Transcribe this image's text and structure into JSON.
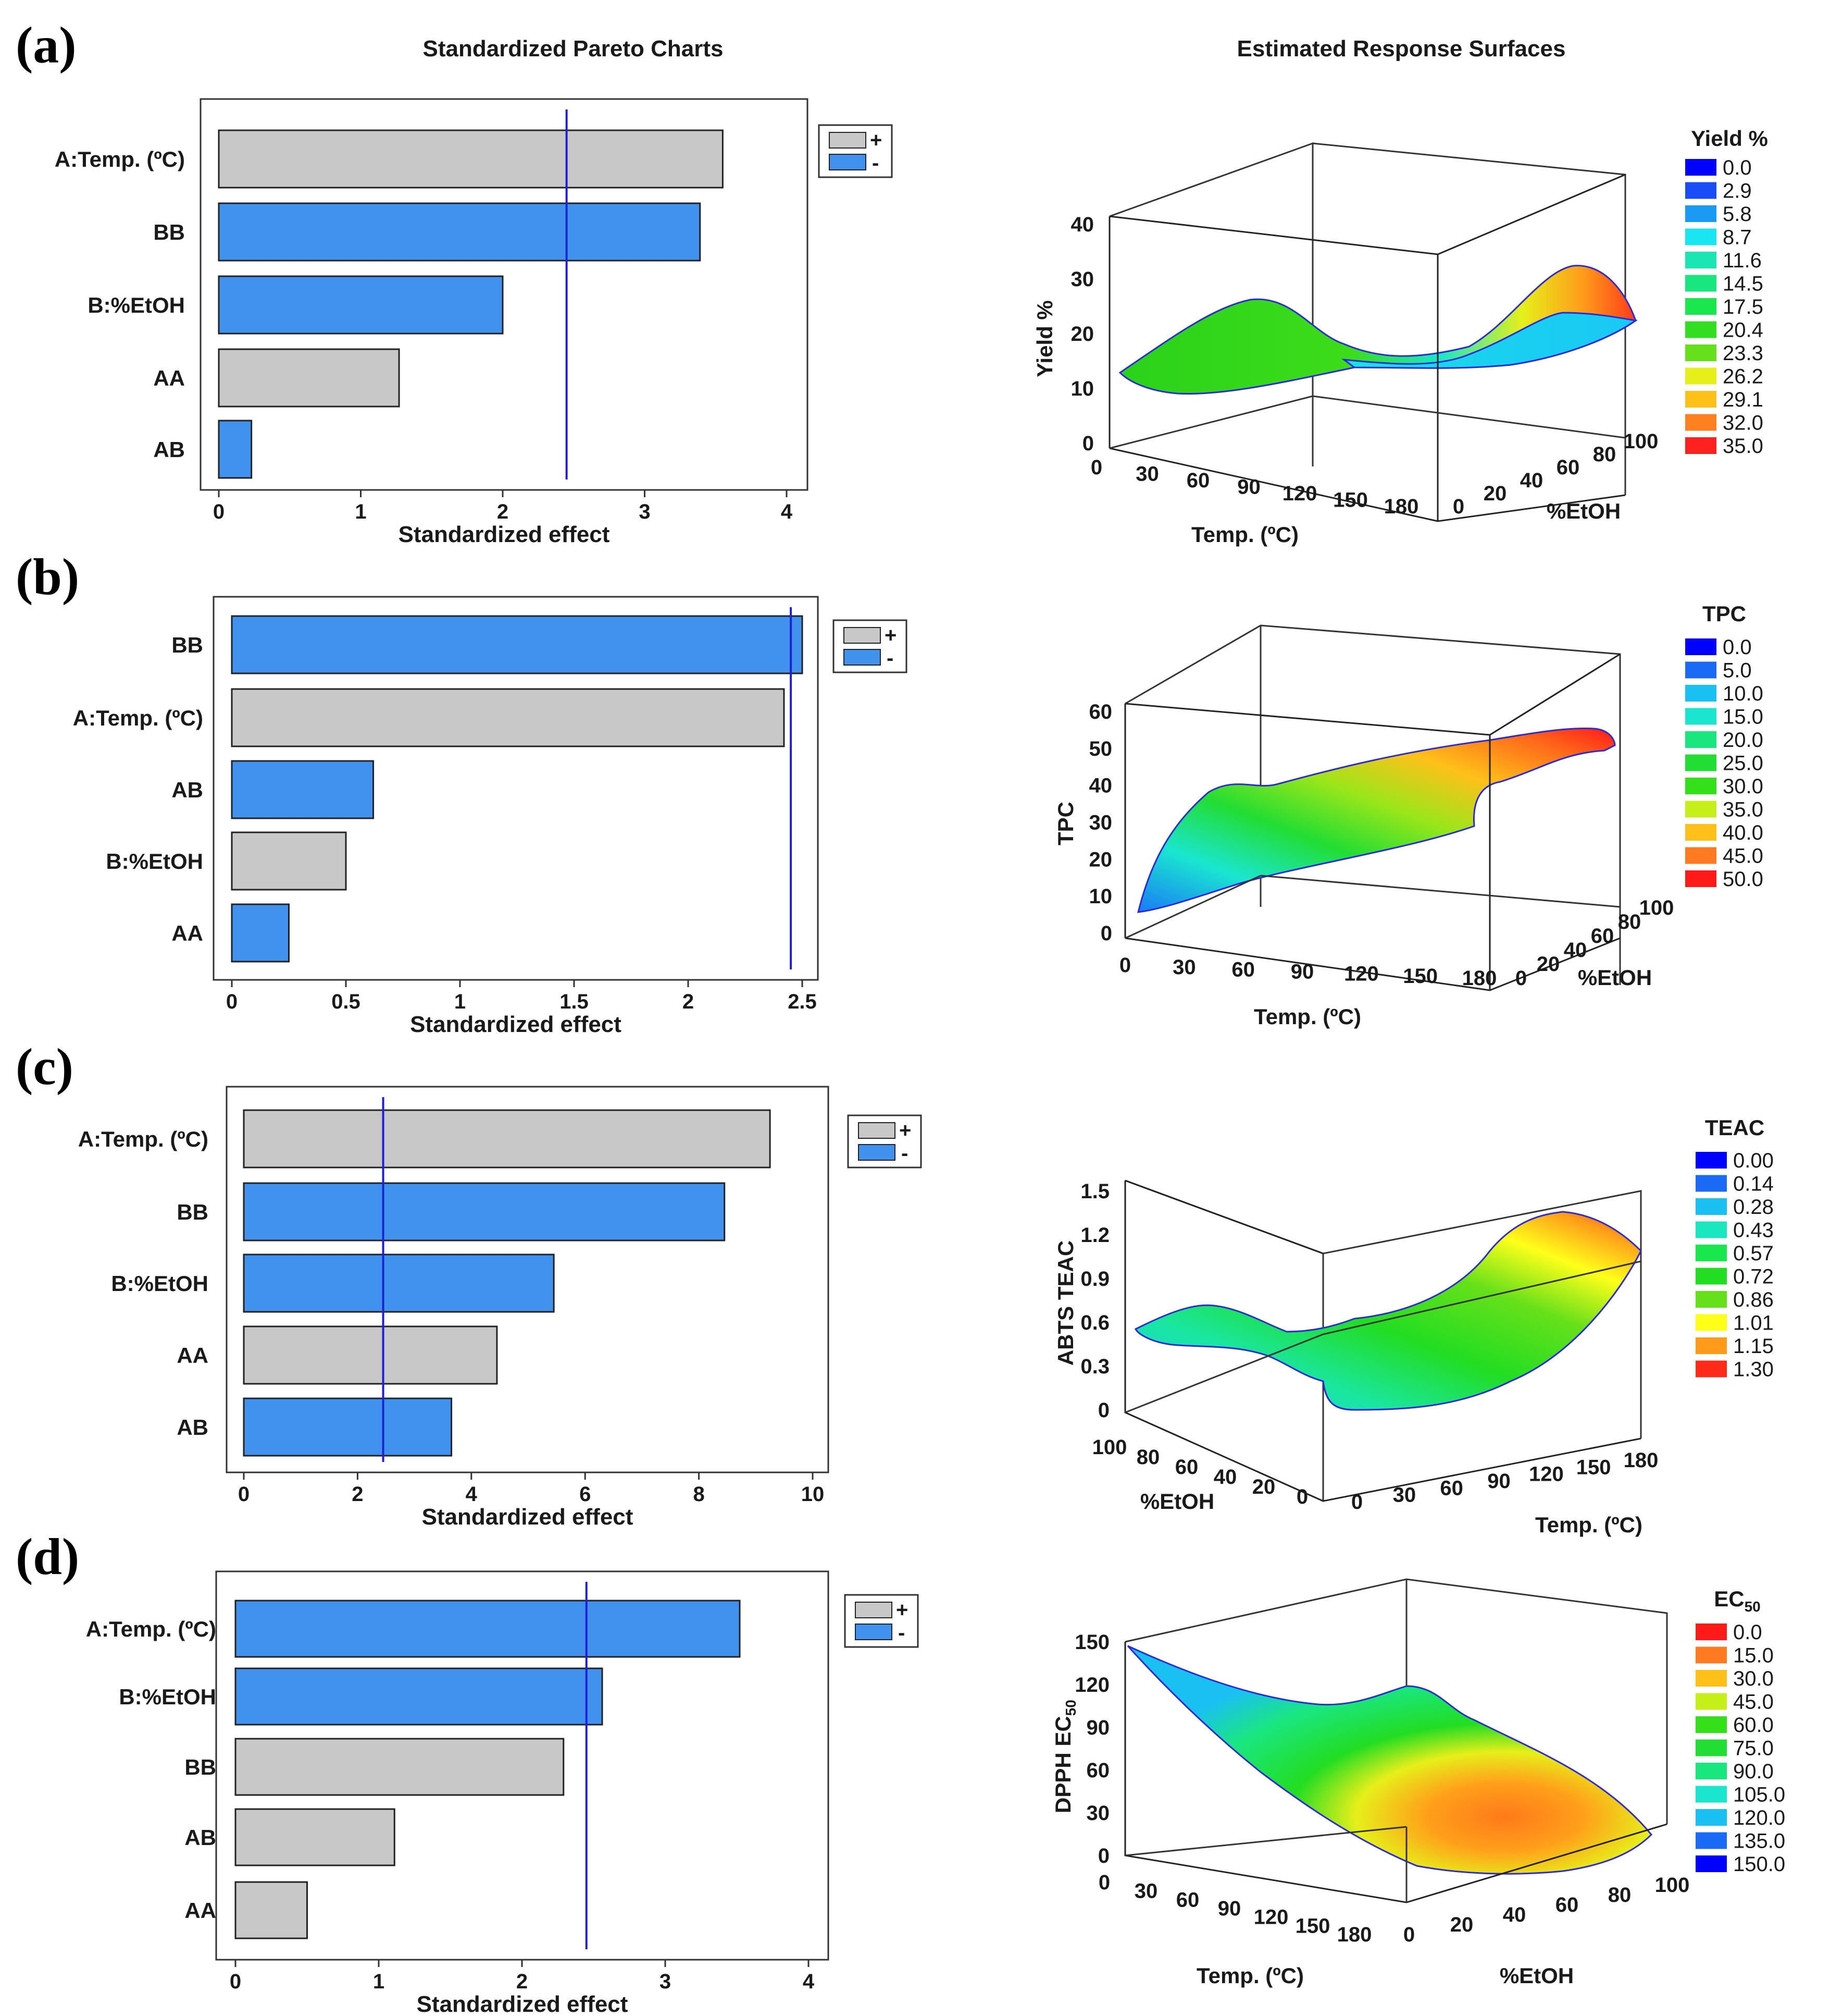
{
  "headers": {
    "left": "Standardized Pareto Charts",
    "right": "Estimated Response Surfaces"
  },
  "colors": {
    "bar_pos": "#c8c8c8",
    "bar_neg": "#4192ee",
    "ref_line": "#1f1fd8",
    "surface_green": "#22dd22"
  },
  "legend_symbols": {
    "plus": "+",
    "minus": "-"
  },
  "chart_data": [
    {
      "id": "a",
      "label": "(a)",
      "type": "bar",
      "orientation": "horizontal",
      "xlabel": "Standardized effect",
      "xlim": [
        0,
        4
      ],
      "xticks": [
        "0",
        "1",
        "2",
        "3",
        "4"
      ],
      "ref_line": 2.45,
      "categories": [
        "A:Temp. (ºC)",
        "BB",
        "B:%EtOH",
        "AA",
        "AB"
      ],
      "values": [
        3.55,
        3.39,
        2.0,
        1.27,
        0.23
      ],
      "signs": [
        "+",
        "-",
        "-",
        "+",
        "-"
      ],
      "surface": {
        "zlabel": "Yield %",
        "zticks": [
          "0",
          "10",
          "20",
          "30",
          "40"
        ],
        "xlabel": "Temp. (ºC)",
        "xticks": [
          "0",
          "30",
          "60",
          "90",
          "120",
          "150",
          "180"
        ],
        "ylabel": "%EtOH",
        "yticks": [
          "0",
          "20",
          "40",
          "60",
          "80",
          "100"
        ],
        "legend_title": "Yield %",
        "legend_values": [
          "0.0",
          "2.9",
          "5.8",
          "8.7",
          "11.6",
          "14.5",
          "17.5",
          "20.4",
          "23.3",
          "26.2",
          "29.1",
          "32.0",
          "35.0"
        ],
        "legend_colors": [
          "#0000ff",
          "#1a4df5",
          "#1a9af2",
          "#1ae6f2",
          "#1ae6b3",
          "#1ae680",
          "#1ae64d",
          "#33dd22",
          "#66e01a",
          "#e6ef1a",
          "#ffc01a",
          "#ff8020",
          "#ff2020"
        ]
      }
    },
    {
      "id": "b",
      "label": "(b)",
      "type": "bar",
      "orientation": "horizontal",
      "xlabel": "Standardized effect",
      "xlim": [
        0,
        2.5
      ],
      "xticks": [
        "0",
        "0.5",
        "1",
        "1.5",
        "2",
        "2.5"
      ],
      "ref_line": 2.45,
      "categories": [
        "BB",
        "A:Temp. (ºC)",
        "AB",
        "B:%EtOH",
        "AA"
      ],
      "values": [
        2.5,
        2.42,
        0.62,
        0.5,
        0.25
      ],
      "signs": [
        "-",
        "+",
        "-",
        "+",
        "-"
      ],
      "surface": {
        "zlabel": "TPC",
        "zticks": [
          "0",
          "10",
          "20",
          "30",
          "40",
          "50",
          "60"
        ],
        "xlabel": "Temp. (ºC)",
        "xticks": [
          "0",
          "30",
          "60",
          "90",
          "120",
          "150",
          "180"
        ],
        "ylabel": "%EtOH",
        "yticks": [
          "0",
          "20",
          "40",
          "60",
          "80",
          "100"
        ],
        "legend_title": "TPC",
        "legend_values": [
          "0.0",
          "5.0",
          "10.0",
          "15.0",
          "20.0",
          "25.0",
          "30.0",
          "35.0",
          "40.0",
          "45.0",
          "50.0"
        ],
        "legend_colors": [
          "#0000ff",
          "#1a6af5",
          "#1ac0f2",
          "#1ae6d0",
          "#1ae680",
          "#22dd33",
          "#33e01a",
          "#c6ef1a",
          "#ffc01a",
          "#ff7a20",
          "#ff1a1a"
        ]
      }
    },
    {
      "id": "c",
      "label": "(c)",
      "type": "bar",
      "orientation": "horizontal",
      "xlabel": "Standardized effect",
      "xlim": [
        0,
        10
      ],
      "xticks": [
        "0",
        "2",
        "4",
        "6",
        "8",
        "10"
      ],
      "ref_line": 2.45,
      "categories": [
        "A:Temp. (ºC)",
        "BB",
        "B:%EtOH",
        "AA",
        "AB"
      ],
      "values": [
        9.25,
        8.45,
        5.45,
        4.45,
        3.65
      ],
      "signs": [
        "+",
        "-",
        "-",
        "+",
        "-"
      ],
      "surface": {
        "zlabel": "ABTS TEAC",
        "zticks": [
          "0",
          "0.3",
          "0.6",
          "0.9",
          "1.2",
          "1.5"
        ],
        "xlabel": "Temp. (ºC)",
        "xticks": [
          "0",
          "30",
          "60",
          "90",
          "120",
          "150",
          "180"
        ],
        "ylabel": "%EtOH",
        "yticks": [
          "100",
          "80",
          "60",
          "40",
          "20",
          "0"
        ],
        "legend_title": "TEAC",
        "legend_values": [
          "0.00",
          "0.14",
          "0.28",
          "0.43",
          "0.57",
          "0.72",
          "0.86",
          "1.01",
          "1.15",
          "1.30"
        ],
        "legend_colors": [
          "#0000ff",
          "#1a6af5",
          "#1ac0f2",
          "#1ae6c0",
          "#1ae64d",
          "#22dd22",
          "#66e01a",
          "#ffff1a",
          "#ff9a1a",
          "#ff2a1a"
        ]
      }
    },
    {
      "id": "d",
      "label": "(d)",
      "type": "bar",
      "orientation": "horizontal",
      "xlabel": "Standardized effect",
      "xlim": [
        0,
        4
      ],
      "xticks": [
        "0",
        "1",
        "2",
        "3",
        "4"
      ],
      "ref_line": 2.45,
      "categories": [
        "A:Temp. (ºC)",
        "B:%EtOH",
        "BB",
        "AB",
        "AA"
      ],
      "values": [
        3.52,
        2.56,
        2.29,
        1.11,
        0.5
      ],
      "signs": [
        "-",
        "-",
        "+",
        "+",
        "+"
      ],
      "surface": {
        "zlabel": "DPPH EC",
        "zlabel_sub": "50",
        "zticks": [
          "0",
          "30",
          "60",
          "90",
          "120",
          "150"
        ],
        "xlabel": "Temp. (ºC)",
        "xticks": [
          "0",
          "30",
          "60",
          "90",
          "120",
          "150",
          "180"
        ],
        "ylabel": "%EtOH",
        "yticks": [
          "0",
          "20",
          "40",
          "60",
          "80",
          "100"
        ],
        "legend_title": "EC",
        "legend_title_sub": "50",
        "legend_values": [
          "0.0",
          "15.0",
          "30.0",
          "45.0",
          "60.0",
          "75.0",
          "90.0",
          "105.0",
          "120.0",
          "135.0",
          "150.0"
        ],
        "legend_colors": [
          "#ff1a1a",
          "#ff7a20",
          "#ffc01a",
          "#c6ef1a",
          "#33e01a",
          "#22dd33",
          "#1ae680",
          "#1ae6d0",
          "#1ac0f2",
          "#1a6af5",
          "#0000ff"
        ]
      }
    }
  ]
}
